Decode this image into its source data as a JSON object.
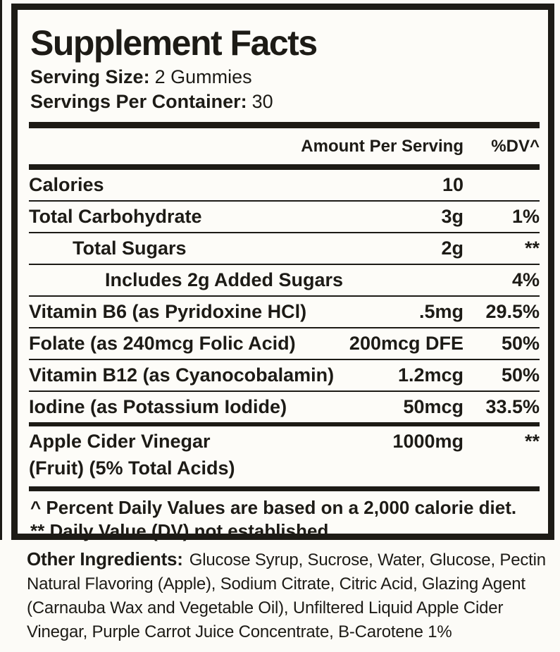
{
  "panel": {
    "title": "Supplement Facts",
    "serving_size": {
      "label": "Serving Size:",
      "value": "2 Gummies"
    },
    "servings_per_container": {
      "label": "Servings Per Container:",
      "value": "30"
    },
    "columns": {
      "amount": "Amount Per Serving",
      "dv": "%DV^"
    },
    "rows": [
      {
        "name": "Calories",
        "amount": "10",
        "dv": "",
        "indent": 0,
        "sep": "thin"
      },
      {
        "name": "Total Carbohydrate",
        "amount": "3g",
        "dv": "1%",
        "indent": 0,
        "sep": "thin"
      },
      {
        "name": "Total Sugars",
        "amount": "2g",
        "dv": "**",
        "indent": 1,
        "sep": "thin"
      },
      {
        "name": "Includes 2g Added Sugars",
        "amount": "",
        "dv": "4%",
        "indent": 2,
        "sep": "thin"
      },
      {
        "name": "Vitamin B6 (as Pyridoxine HCl)",
        "amount": ".5mg",
        "dv": "29.5%",
        "indent": 0,
        "sep": "thin"
      },
      {
        "name": "Folate (as 240mcg Folic Acid)",
        "amount": "200mcg DFE",
        "dv": "50%",
        "indent": 0,
        "sep": "thin"
      },
      {
        "name": "Vitamin B12 (as Cyanocobalamin)",
        "amount": "1.2mcg",
        "dv": "50%",
        "indent": 0,
        "sep": "thin"
      },
      {
        "name": "Iodine (as Potassium Iodide)",
        "amount": "50mcg",
        "dv": "33.5%",
        "indent": 0,
        "sep": "medium"
      },
      {
        "name": "Apple Cider Vinegar",
        "name2": "(Fruit) (5% Total Acids)",
        "amount": "1000mg",
        "dv": "**",
        "indent": 0,
        "sep": "none"
      }
    ],
    "footnotes": [
      "^ Percent Daily Values are based on a 2,000 calorie diet.",
      "** Daily Value (DV) not established."
    ]
  },
  "other_ingredients": {
    "label": "Other Ingredients:",
    "text": "Glucose Syrup, Sucrose, Water, Glucose, Pectin Natural Flavoring (Apple), Sodium Citrate, Citric Acid, Glazing Agent (Carnauba Wax and Vegetable Oil), Unfiltered Liquid Apple Cider Vinegar, Purple Carrot Juice Concentrate, B-Carotene 1%"
  },
  "colors": {
    "ink": "#1d1b16",
    "paper": "#fcfbf7",
    "panel_bg": "#fdfcf8"
  }
}
